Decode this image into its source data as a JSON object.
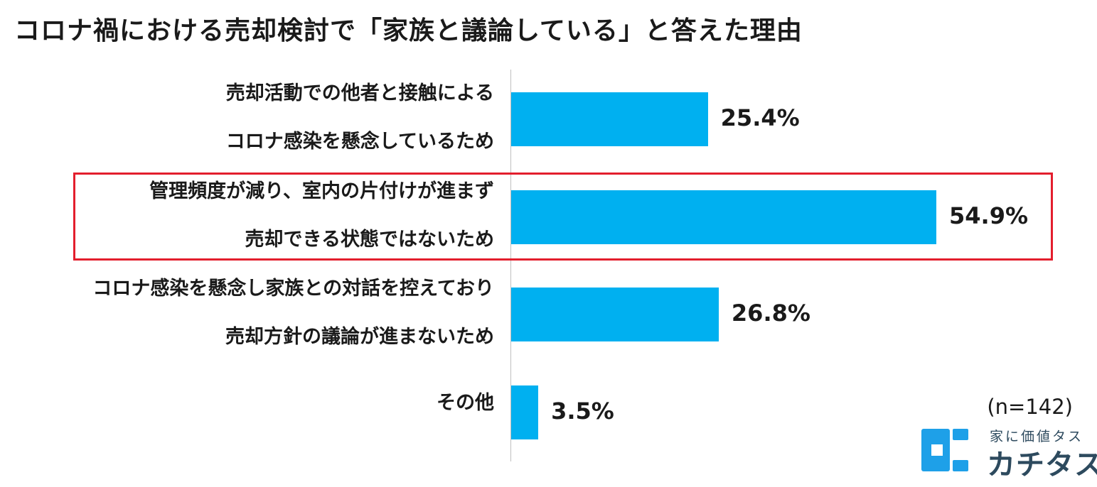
{
  "chart_data": {
    "type": "bar",
    "orientation": "horizontal",
    "title": "コロナ禍における売却検討で「家族と議論している」と答えた理由",
    "categories": [
      [
        "売却活動での他者と接触による",
        "コロナ感染を懸念しているため"
      ],
      [
        "管理頻度が減り、室内の片付けが進まず",
        "売却できる状態ではないため"
      ],
      [
        "コロナ感染を懸念し家族との対話を控えており",
        "売却方針の議論が進まないため"
      ],
      [
        "その他"
      ]
    ],
    "values": [
      25.4,
      54.9,
      26.8,
      3.5
    ],
    "value_labels": [
      "25.4%",
      "54.9%",
      "26.8%",
      "3.5%"
    ],
    "xlim": [
      0,
      60
    ],
    "highlighted_index": 1,
    "bar_color": "#00b0f0",
    "highlight_color": "#e31e2d",
    "note": "(n=142)",
    "grid": false
  },
  "brand": {
    "tagline": "家に価値タス",
    "name": "カチタス",
    "color": "#2d4a5e",
    "accent": "#1ea0e8"
  }
}
